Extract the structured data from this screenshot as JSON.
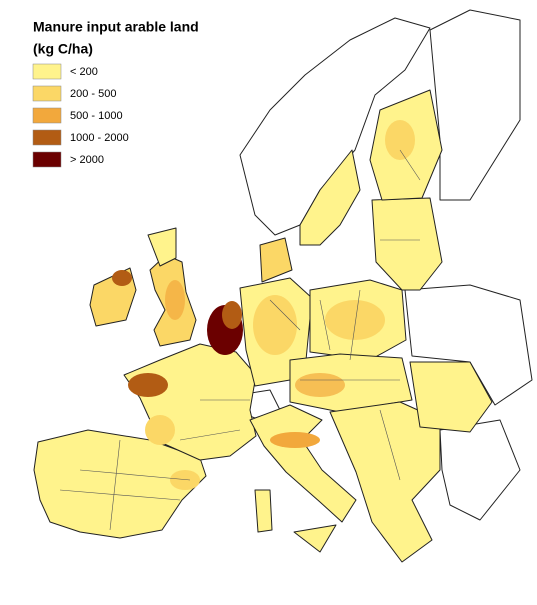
{
  "title": "Manure input arable land",
  "unit": "(kg C/ha)",
  "legend": [
    {
      "label": "< 200",
      "color": "#fff38c"
    },
    {
      "label": "200 - 500",
      "color": "#fbd766"
    },
    {
      "label": "500 - 1000",
      "color": "#f2a83c"
    },
    {
      "label": "1000 - 2000",
      "color": "#b25c14"
    },
    {
      "label": "> 2000",
      "color": "#6b0000"
    }
  ]
}
